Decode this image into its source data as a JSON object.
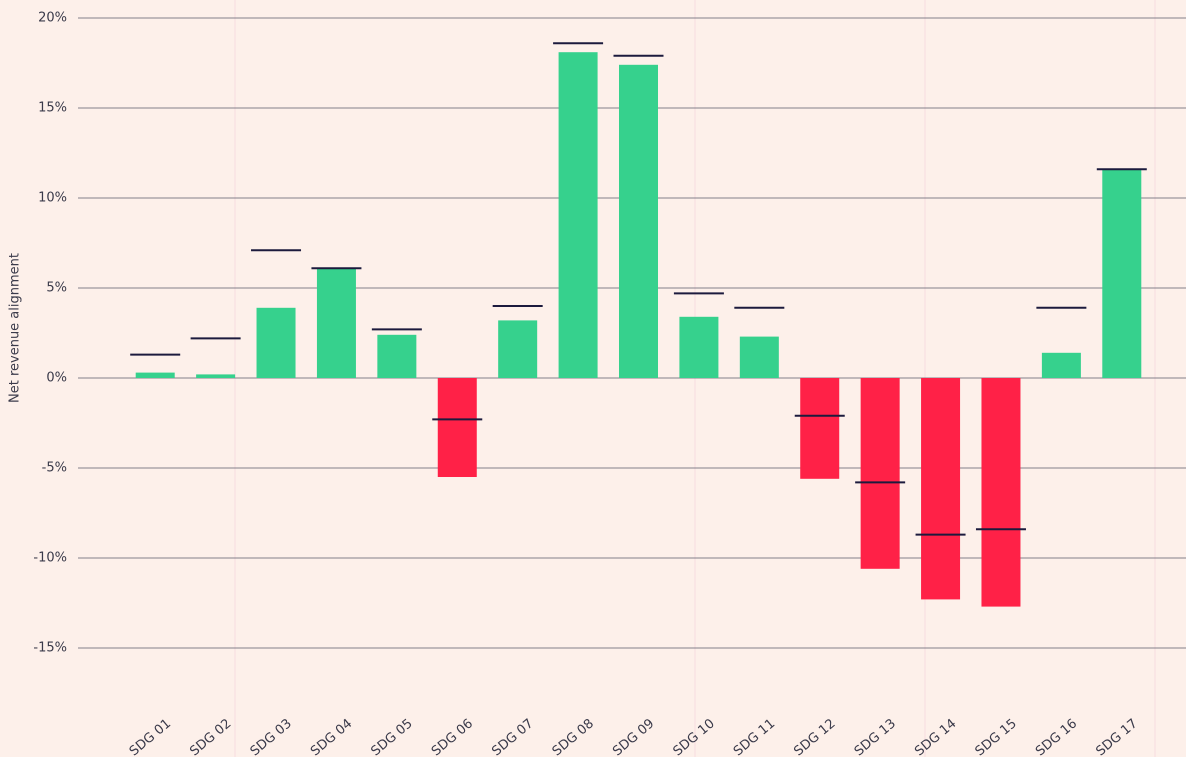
{
  "chart_data": {
    "type": "bar",
    "y_label": "Net revenue alignment",
    "categories": [
      "SDG 01",
      "SDG 02",
      "SDG 03",
      "SDG 04",
      "SDG 05",
      "SDG 06",
      "SDG 07",
      "SDG 08",
      "SDG 09",
      "SDG 10",
      "SDG 11",
      "SDG 12",
      "SDG 13",
      "SDG 14",
      "SDG 15",
      "SDG 16",
      "SDG 17"
    ],
    "values": [
      0.3,
      0.2,
      3.9,
      6.1,
      2.4,
      -5.5,
      3.2,
      18.1,
      17.4,
      3.4,
      2.3,
      -5.6,
      -10.6,
      -12.3,
      -12.7,
      1.4,
      11.6
    ],
    "markers": [
      1.3,
      2.2,
      7.1,
      6.1,
      2.7,
      -2.3,
      4.0,
      18.6,
      17.9,
      4.7,
      3.9,
      -2.1,
      -5.8,
      -8.7,
      -8.4,
      3.9,
      11.6
    ],
    "positive_color": "#36d18d",
    "negative_color": "#ff2147",
    "marker_color": "#1c1a3d",
    "ylim": [
      -18,
      20
    ],
    "yticks": [
      {
        "value": 20,
        "label": "20%"
      },
      {
        "value": 15,
        "label": "15%"
      },
      {
        "value": 10,
        "label": "10%"
      },
      {
        "value": 5,
        "label": "5%"
      },
      {
        "value": 0,
        "label": "0%"
      },
      {
        "value": -5,
        "label": "-5%"
      },
      {
        "value": -10,
        "label": "-10%"
      },
      {
        "value": -15,
        "label": "-15%"
      }
    ],
    "grid": true
  }
}
